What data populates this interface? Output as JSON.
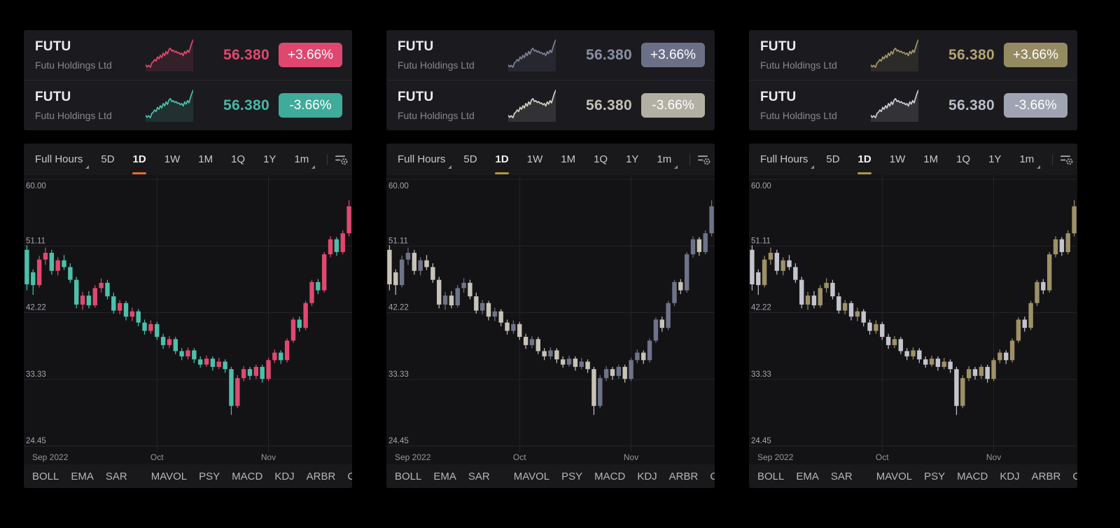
{
  "quote_card": {
    "symbol": "FUTU",
    "company": "Futu Holdings Ltd",
    "rows": [
      {
        "direction": "up",
        "price": "56.380",
        "change": "+3.66%"
      },
      {
        "direction": "down",
        "price": "56.380",
        "change": "-3.66%"
      }
    ]
  },
  "toolbar": {
    "tabs": [
      "Full Hours",
      "5D",
      "1D",
      "1W",
      "1M",
      "1Q",
      "1Y",
      "1m"
    ],
    "active_tab": "1D",
    "dropdown_tabs": [
      "Full Hours",
      "1m"
    ],
    "settings_icon": "indicator-settings-icon"
  },
  "x_axis": {
    "labels": [
      {
        "text": "Sep 2022",
        "position": "left"
      },
      {
        "text": "Oct",
        "index": 21
      },
      {
        "text": "Nov",
        "index": 39
      }
    ]
  },
  "indicator_bar": {
    "items": [
      "BOLL",
      "EMA",
      "SAR",
      "MAVOL",
      "PSY",
      "MACD",
      "KDJ",
      "ARBR",
      "C"
    ],
    "divider_after": "SAR"
  },
  "themes": [
    {
      "name": "red-rise-teal-fall",
      "up": "#e1486f",
      "down": "#4cc0aa",
      "price_up": "#e1486f",
      "price_down": "#49b8a5",
      "badge_up_bg": "#e0476f",
      "badge_down_bg": "#3fab9a",
      "spark_up": "#e1486f",
      "spark_down": "#4cc0aa",
      "tab_underline": "#e86c2a"
    },
    {
      "name": "slate-rise-beige-fall",
      "up": "#6e7389",
      "down": "#c7c3b6",
      "price_up": "#8a8fa6",
      "price_down": "#c3c0b5",
      "badge_up_bg": "#6b7086",
      "badge_down_bg": "#b2afa3",
      "spark_up": "#7c819a",
      "spark_down": "#d4d1c6",
      "tab_underline": "#b09839"
    },
    {
      "name": "khaki-rise-gray-fall",
      "up": "#9e9168",
      "down": "#c4c4cc",
      "price_up": "#b1a376",
      "price_down": "#b9bcc6",
      "badge_up_bg": "#958b63",
      "badge_down_bg": "#a0a4b2",
      "spark_up": "#a5976c",
      "spark_down": "#cdcdd5",
      "tab_underline": "#b09839"
    }
  ],
  "chart_data": {
    "type": "candlestick",
    "symbol": "FUTU",
    "timeframe": "1D",
    "ylim": [
      24.45,
      60.0
    ],
    "y_ticks": [
      {
        "label": "60.00",
        "value": 60.0
      },
      {
        "label": "51.11",
        "value": 51.11
      },
      {
        "label": "42.22",
        "value": 42.22
      },
      {
        "label": "33.33",
        "value": 33.33
      },
      {
        "label": "24.45",
        "value": 24.45
      }
    ],
    "x_gridline_indices": [
      21,
      39
    ],
    "candles_format": "open,high,low,close",
    "candles": [
      [
        50.6,
        51.2,
        45.2,
        46.0
      ],
      [
        47.6,
        48.0,
        44.6,
        45.9
      ],
      [
        45.9,
        49.8,
        45.6,
        49.3
      ],
      [
        49.3,
        50.9,
        48.6,
        50.2
      ],
      [
        50.2,
        50.6,
        47.3,
        47.8
      ],
      [
        47.8,
        49.6,
        47.2,
        49.2
      ],
      [
        49.2,
        49.9,
        47.9,
        48.3
      ],
      [
        48.3,
        48.8,
        46.2,
        46.6
      ],
      [
        46.6,
        47.0,
        42.8,
        43.3
      ],
      [
        43.3,
        45.0,
        42.6,
        44.5
      ],
      [
        44.5,
        45.1,
        42.8,
        43.2
      ],
      [
        43.2,
        45.9,
        42.9,
        45.5
      ],
      [
        45.5,
        46.8,
        44.9,
        46.2
      ],
      [
        46.2,
        46.6,
        44.0,
        44.4
      ],
      [
        44.4,
        44.9,
        42.1,
        42.5
      ],
      [
        42.5,
        43.9,
        42.0,
        43.5
      ],
      [
        43.5,
        43.8,
        41.2,
        41.7
      ],
      [
        41.7,
        42.9,
        41.1,
        42.4
      ],
      [
        42.4,
        42.7,
        40.4,
        40.9
      ],
      [
        40.9,
        41.3,
        39.3,
        39.8
      ],
      [
        39.8,
        41.2,
        39.4,
        40.7
      ],
      [
        40.7,
        41.0,
        38.6,
        39.0
      ],
      [
        39.0,
        39.4,
        37.4,
        37.9
      ],
      [
        37.9,
        39.1,
        37.5,
        38.7
      ],
      [
        38.7,
        39.0,
        36.7,
        37.1
      ],
      [
        37.1,
        37.5,
        35.9,
        36.4
      ],
      [
        36.4,
        37.6,
        36.0,
        37.2
      ],
      [
        37.2,
        37.5,
        35.5,
        36.0
      ],
      [
        36.0,
        36.4,
        34.9,
        35.3
      ],
      [
        35.3,
        36.5,
        35.0,
        36.1
      ],
      [
        36.1,
        36.4,
        34.5,
        35.0
      ],
      [
        35.0,
        36.2,
        34.7,
        35.7
      ],
      [
        35.7,
        36.0,
        34.2,
        34.7
      ],
      [
        34.7,
        35.0,
        28.6,
        29.8
      ],
      [
        29.8,
        33.9,
        29.5,
        33.5
      ],
      [
        33.5,
        35.1,
        33.1,
        34.7
      ],
      [
        34.7,
        35.0,
        33.3,
        33.8
      ],
      [
        33.8,
        35.3,
        33.4,
        35.0
      ],
      [
        35.0,
        35.3,
        32.9,
        33.4
      ],
      [
        33.4,
        36.2,
        33.1,
        35.9
      ],
      [
        35.9,
        37.3,
        35.5,
        36.9
      ],
      [
        36.9,
        37.2,
        35.4,
        35.9
      ],
      [
        35.9,
        38.8,
        35.6,
        38.5
      ],
      [
        38.5,
        41.6,
        38.2,
        41.3
      ],
      [
        41.3,
        41.7,
        39.7,
        40.2
      ],
      [
        40.2,
        43.8,
        39.9,
        43.5
      ],
      [
        43.5,
        46.6,
        43.1,
        46.3
      ],
      [
        46.3,
        46.7,
        44.7,
        45.2
      ],
      [
        45.2,
        50.3,
        44.9,
        50.0
      ],
      [
        50.0,
        52.4,
        49.6,
        52.0
      ],
      [
        52.0,
        52.3,
        49.8,
        50.3
      ],
      [
        50.3,
        53.2,
        50.0,
        52.8
      ],
      [
        52.8,
        57.2,
        52.4,
        56.4
      ]
    ]
  },
  "sparkline": {
    "points": [
      [
        0,
        80
      ],
      [
        3,
        86
      ],
      [
        6,
        81
      ],
      [
        10,
        87
      ],
      [
        13,
        74
      ],
      [
        16,
        70
      ],
      [
        19,
        63
      ],
      [
        22,
        68
      ],
      [
        25,
        55
      ],
      [
        28,
        61
      ],
      [
        31,
        50
      ],
      [
        34,
        57
      ],
      [
        37,
        43
      ],
      [
        40,
        51
      ],
      [
        43,
        38
      ],
      [
        46,
        46
      ],
      [
        49,
        32
      ],
      [
        52,
        28
      ],
      [
        55,
        37
      ],
      [
        58,
        34
      ],
      [
        61,
        40
      ],
      [
        64,
        37
      ],
      [
        67,
        43
      ],
      [
        70,
        41
      ],
      [
        73,
        47
      ],
      [
        76,
        43
      ],
      [
        79,
        51
      ],
      [
        82,
        38
      ],
      [
        85,
        45
      ],
      [
        88,
        34
      ],
      [
        91,
        41
      ],
      [
        94,
        26
      ],
      [
        97,
        12
      ],
      [
        100,
        2
      ]
    ]
  }
}
